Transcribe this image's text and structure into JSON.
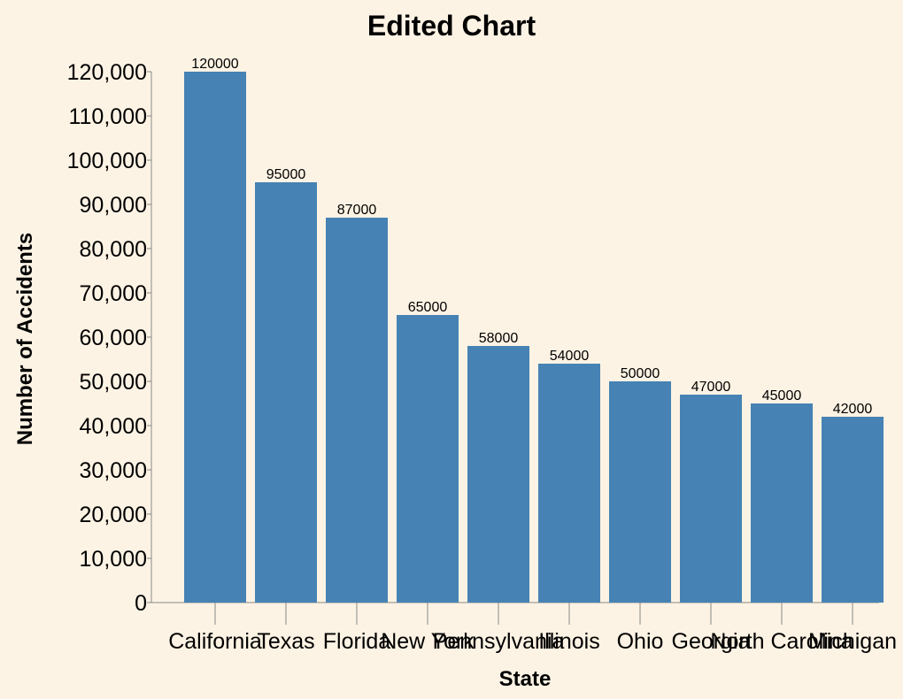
{
  "chart_data": {
    "type": "bar",
    "title": "Edited Chart",
    "xlabel": "State",
    "ylabel": "Number of Accidents",
    "categories": [
      "California",
      "Texas",
      "Florida",
      "New York",
      "Pennsylvania",
      "Illinois",
      "Ohio",
      "Georgia",
      "North Carolina",
      "Michigan"
    ],
    "values": [
      120000,
      95000,
      87000,
      65000,
      58000,
      54000,
      50000,
      47000,
      45000,
      42000
    ],
    "data_labels": [
      "120000",
      "95000",
      "87000",
      "65000",
      "58000",
      "54000",
      "50000",
      "47000",
      "45000",
      "42000"
    ],
    "ylim": [
      0,
      120000
    ],
    "y_ticks": [
      0,
      10000,
      20000,
      30000,
      40000,
      50000,
      60000,
      70000,
      80000,
      90000,
      100000,
      110000,
      120000
    ],
    "y_tick_labels": [
      "0",
      "10,000",
      "20,000",
      "30,000",
      "40,000",
      "50,000",
      "60,000",
      "70,000",
      "80,000",
      "90,000",
      "100,000",
      "110,000",
      "120,000"
    ],
    "grid": false,
    "legend": "none",
    "colors": {
      "bar": "#4682b4",
      "background": "#fdf3e4",
      "axis": "#888888",
      "text": "#000000"
    }
  }
}
